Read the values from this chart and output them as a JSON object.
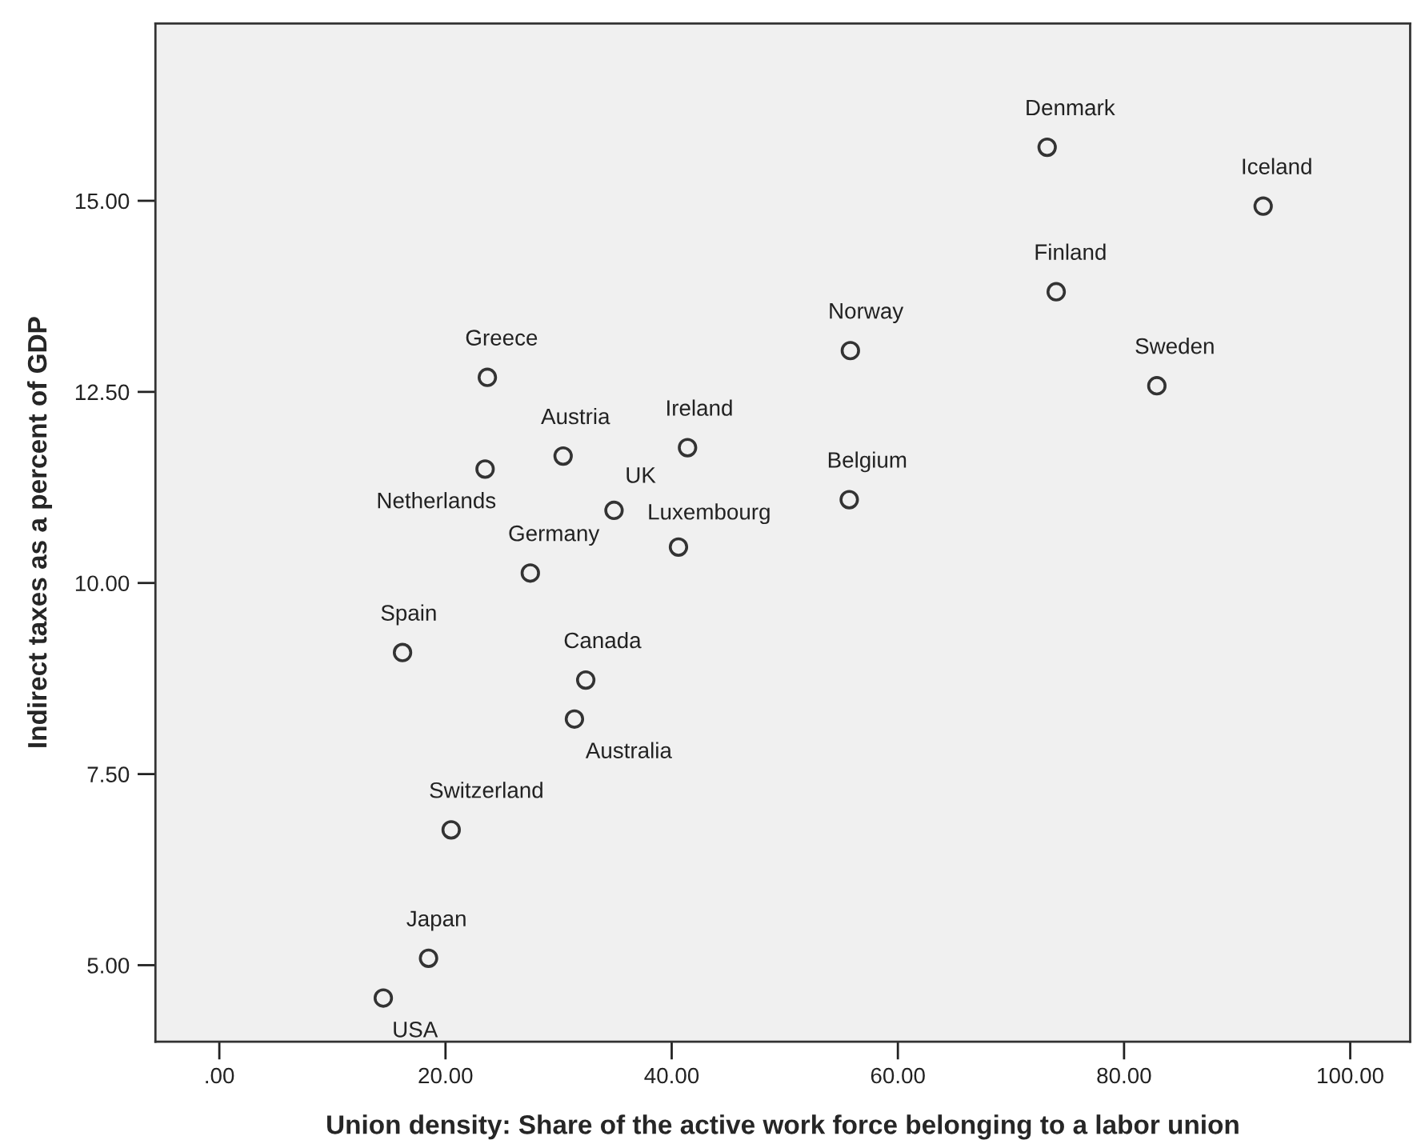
{
  "chart_data": {
    "type": "scatter",
    "xlabel": "Union density: Share of the active work force belonging to a labor union",
    "ylabel": "Indirect taxes as a percent of GDP",
    "series": [
      {
        "color": "#333333",
        "x": [
          73.2,
          92.3,
          74.0,
          82.9,
          55.8,
          55.7,
          23.7,
          30.4,
          41.4,
          23.5,
          34.9,
          40.6,
          27.5,
          16.2,
          32.4,
          31.4,
          20.5,
          18.5,
          14.5
        ],
        "values": [
          15.7,
          14.93,
          13.81,
          12.58,
          13.04,
          11.09,
          12.69,
          11.66,
          11.77,
          11.49,
          10.95,
          10.47,
          10.13,
          9.09,
          8.73,
          8.22,
          6.77,
          5.09,
          4.57
        ],
        "value_labels": [
          "Denmark",
          "Iceland",
          "Finland",
          "Sweden",
          "Norway",
          "Belgium",
          "Greece",
          "Austria",
          "Ireland",
          "Netherlands",
          "UK",
          "Luxembourg",
          "Germany",
          "Spain",
          "Canada",
          "Australia",
          "Switzerland",
          "Japan",
          "USA"
        ]
      }
    ],
    "marker": "circle",
    "xlim": [
      -5.65,
      105.3
    ],
    "ylim": [
      4.0,
      17.32
    ],
    "xticks": [
      {
        "value": 0,
        "label": ".00"
      },
      {
        "value": 20,
        "label": "20.00"
      },
      {
        "value": 40,
        "label": "40.00"
      },
      {
        "value": 60,
        "label": "60.00"
      },
      {
        "value": 80,
        "label": "80.00"
      },
      {
        "value": 100,
        "label": "100.00"
      }
    ],
    "yticks": [
      {
        "value": 5,
        "label": "5.00"
      },
      {
        "value": 7.5,
        "label": "7.50"
      },
      {
        "value": 10,
        "label": "10.00"
      },
      {
        "value": 12.5,
        "label": "12.50"
      },
      {
        "value": 15,
        "label": "15.00"
      }
    ]
  }
}
